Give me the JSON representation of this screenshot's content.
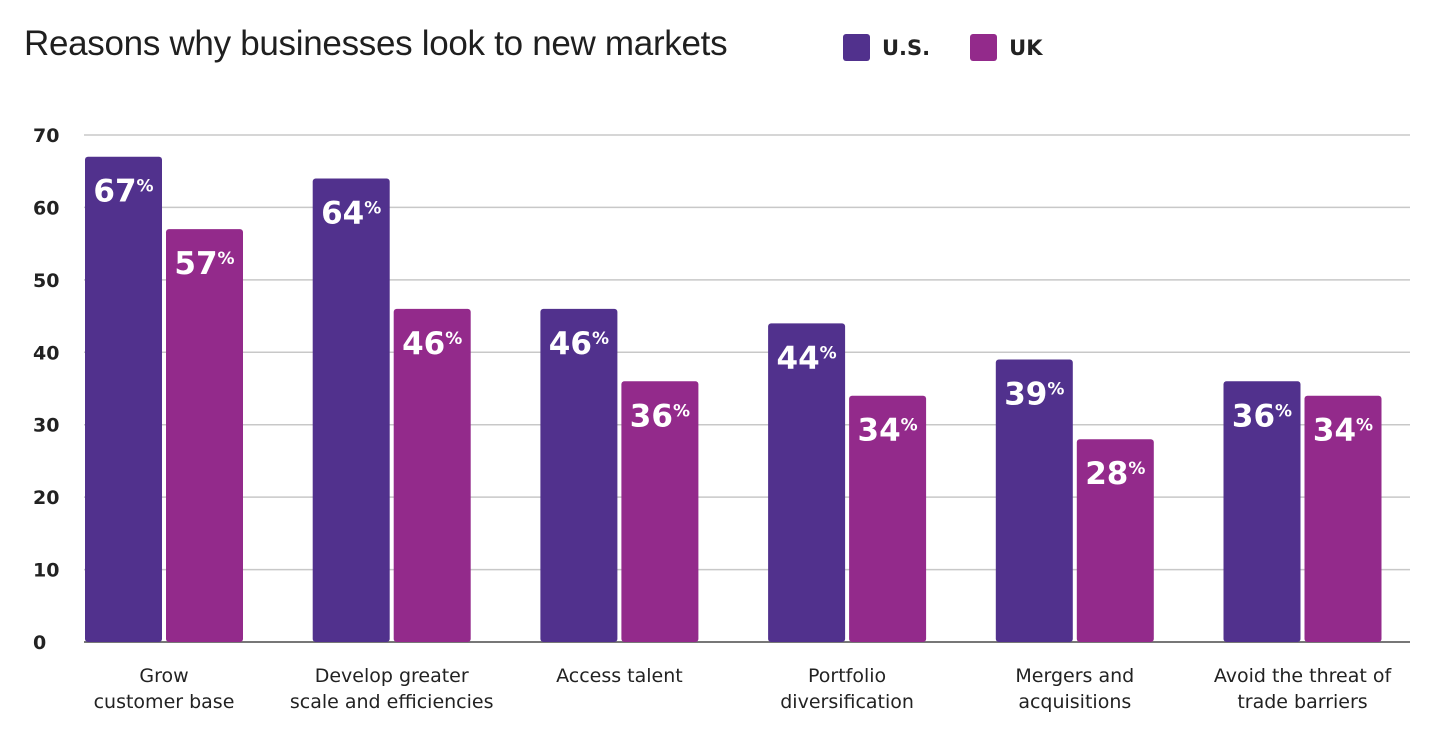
{
  "chart_data": {
    "type": "bar",
    "title": "Reasons why businesses look to new markets",
    "categories": [
      [
        "Grow",
        "customer base"
      ],
      [
        "Develop greater",
        "scale and efficiencies"
      ],
      [
        "Access talent"
      ],
      [
        "Portfolio",
        "diversification"
      ],
      [
        "Mergers and",
        "acquisitions"
      ],
      [
        "Avoid the threat of",
        "trade barriers"
      ]
    ],
    "series": [
      {
        "name": "U.S.",
        "color": "#51318d",
        "values": [
          67,
          64,
          46,
          44,
          39,
          36
        ]
      },
      {
        "name": "UK",
        "color": "#932a8b",
        "values": [
          57,
          46,
          36,
          34,
          28,
          34
        ]
      }
    ],
    "value_suffix": "%",
    "ylim": [
      0,
      70
    ],
    "yticks": [
      0,
      10,
      20,
      30,
      40,
      50,
      60,
      70
    ],
    "grid": true,
    "legend_position": "top"
  }
}
